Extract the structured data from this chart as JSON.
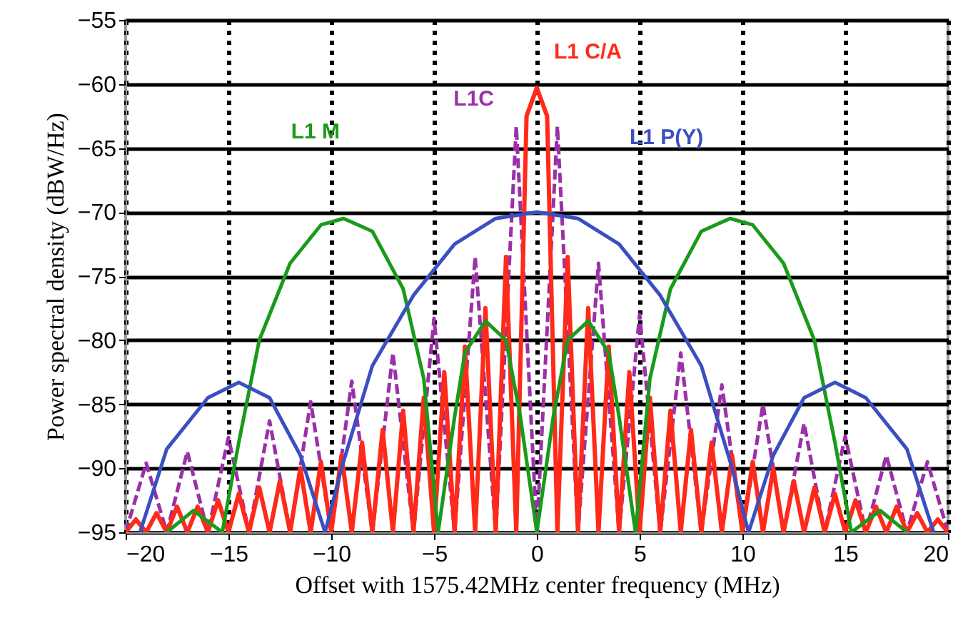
{
  "chart_data": {
    "type": "line",
    "xlabel": "Offset with 1575.42MHz center frequency (MHz)",
    "ylabel": "Power spectral density  (dBW/Hz)",
    "xlim": [
      -20,
      20
    ],
    "xticks": [
      -20,
      -15,
      -10,
      -5,
      0,
      5,
      10,
      15,
      20
    ],
    "ylim": [
      -95,
      -55
    ],
    "yticks": [
      -95,
      -90,
      -85,
      -80,
      -75,
      -70,
      -65,
      -60,
      -55
    ],
    "grid": true,
    "marker": "none",
    "series": [
      {
        "name": "L1C",
        "color": "#9b30a8",
        "line_style": "dashed",
        "x": [
          -20,
          -19,
          -18,
          -17,
          -16,
          -15,
          -14,
          -13,
          -12,
          -11,
          -10,
          -9,
          -8,
          -7,
          -6,
          -5,
          -4,
          -3,
          -2,
          -1,
          0,
          1,
          2,
          3,
          4,
          5,
          6,
          7,
          8,
          9,
          10,
          11,
          12,
          13,
          14,
          15,
          16,
          17,
          18,
          19,
          20
        ],
        "values": [
          -95,
          -89.6,
          -95,
          -88.7,
          -95,
          -87.6,
          -95,
          -86.3,
          -95,
          -84.8,
          -95,
          -83.2,
          -95,
          -81,
          -95,
          -78.3,
          -95,
          -73.5,
          -95,
          -63.3,
          -95,
          -63.3,
          -95,
          -74,
          -95,
          -78,
          -95,
          -81,
          -95,
          -83.5,
          -95,
          -85,
          -95,
          -86.5,
          -95,
          -87.5,
          -95,
          -89,
          -95,
          -89.5,
          -95
        ]
      },
      {
        "name": "L1 C/A",
        "color": "#ff2a1a",
        "line_style": "solid",
        "x": [
          -20,
          -19.5,
          -19,
          -18.5,
          -18,
          -17.5,
          -17,
          -16.5,
          -16,
          -15.5,
          -15,
          -14.5,
          -14,
          -13.5,
          -13,
          -12.5,
          -12,
          -11.5,
          -11,
          -10.5,
          -10,
          -9.5,
          -9,
          -8.5,
          -8,
          -7.5,
          -7,
          -6.5,
          -6,
          -5.5,
          -5,
          -4.5,
          -4,
          -3.5,
          -3,
          -2.5,
          -2,
          -1.5,
          -1,
          -0.5,
          0,
          0.5,
          1,
          1.5,
          2,
          2.5,
          3,
          3.5,
          4,
          4.5,
          5,
          5.5,
          6,
          6.5,
          7,
          7.5,
          8,
          8.5,
          9,
          9.5,
          10,
          10.5,
          11,
          11.5,
          12,
          12.5,
          13,
          13.5,
          14,
          14.5,
          15,
          15.5,
          16,
          16.5,
          17,
          17.5,
          18,
          18.5,
          19,
          19.5,
          20
        ],
        "values": [
          -95,
          -94,
          -95,
          -93.5,
          -95,
          -93,
          -95,
          -93,
          -95,
          -92.5,
          -95,
          -92,
          -95,
          -91.5,
          -95,
          -91,
          -95,
          -90,
          -95,
          -89.5,
          -95,
          -89,
          -95,
          -88,
          -95,
          -87,
          -95,
          -85.5,
          -95,
          -84.5,
          -95,
          -82.5,
          -95,
          -80.5,
          -95,
          -77.5,
          -95,
          -73.5,
          -95,
          -62.5,
          -60.3,
          -62.5,
          -95,
          -73.5,
          -95,
          -77.5,
          -95,
          -80.5,
          -95,
          -82.5,
          -95,
          -84.5,
          -95,
          -85.5,
          -95,
          -87,
          -95,
          -88,
          -95,
          -89,
          -95,
          -89.5,
          -95,
          -90,
          -95,
          -91,
          -95,
          -91.5,
          -95,
          -92,
          -95,
          -92.5,
          -95,
          -93,
          -95,
          -93,
          -95,
          -93.5,
          -95,
          -94,
          -95
        ]
      },
      {
        "name": "L1 M",
        "color": "#1a9a1a",
        "line_style": "solid",
        "x": [
          -18,
          -16.7,
          -15.3,
          -14.5,
          -13.5,
          -12,
          -10.5,
          -9.4,
          -8,
          -6.5,
          -5.5,
          -4.8,
          -4,
          -3.5,
          -2.5,
          -1.5,
          -0.8,
          0,
          0.8,
          1.5,
          2.5,
          3.5,
          4,
          4.8,
          5.5,
          6.5,
          8,
          9.4,
          10.5,
          12,
          13.5,
          14.5,
          15.3,
          16.7,
          18
        ],
        "values": [
          -95,
          -93.3,
          -95,
          -88,
          -80,
          -74,
          -71,
          -70.5,
          -71.5,
          -76,
          -83,
          -95,
          -86,
          -81,
          -78.5,
          -80,
          -86,
          -95,
          -86,
          -80,
          -78.5,
          -81,
          -86,
          -95,
          -83,
          -76,
          -71.5,
          -70.5,
          -71,
          -74,
          -80,
          -88,
          -95,
          -93.3,
          -95
        ]
      },
      {
        "name": "L1 P(Y)",
        "color": "#3a4fc0",
        "line_style": "solid",
        "x": [
          -19.3,
          -18,
          -16,
          -14.5,
          -13,
          -11.5,
          -10.3,
          -9.5,
          -8,
          -6,
          -4,
          -2,
          0,
          2,
          4,
          6,
          8,
          9.5,
          10.3,
          11.5,
          13,
          14.5,
          16,
          18,
          19.3
        ],
        "values": [
          -95,
          -88.5,
          -84.5,
          -83.3,
          -84.5,
          -89,
          -95,
          -90,
          -82,
          -76.5,
          -72.5,
          -70.5,
          -70,
          -70.5,
          -72.5,
          -76.5,
          -82,
          -90,
          -95,
          -89,
          -84.5,
          -83.3,
          -84.5,
          -88.5,
          -95
        ]
      }
    ]
  }
}
